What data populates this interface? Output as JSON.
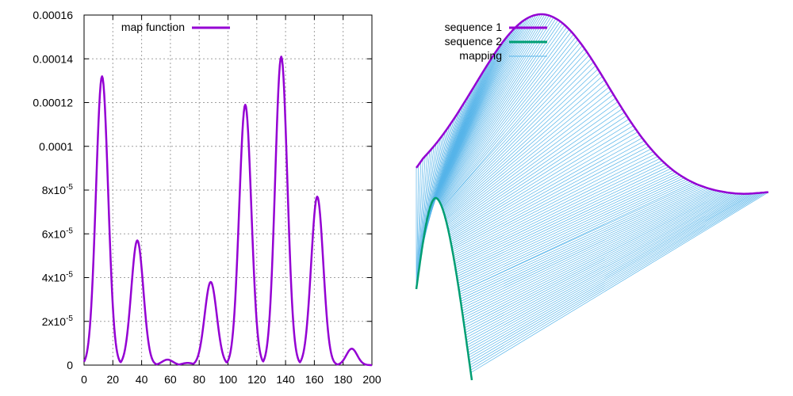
{
  "chart_data": [
    {
      "type": "line",
      "title": "",
      "xlabel": "",
      "ylabel": "",
      "xlim": [
        0,
        200
      ],
      "ylim": [
        0,
        0.00016
      ],
      "grid": true,
      "legend_position": "top-left",
      "x_ticks": [
        "0",
        "20",
        "40",
        "60",
        "80",
        "100",
        "120",
        "140",
        "160",
        "180",
        "200"
      ],
      "y_ticks": [
        "0",
        "2x10-5",
        "4x10-5",
        "6x10-5",
        "8x10-5",
        "0.0001",
        "0.00012",
        "0.00014",
        "0.00016"
      ],
      "y_tick_labels": [
        {
          "base": "0",
          "exp": ""
        },
        {
          "base": "2x10",
          "exp": "-5"
        },
        {
          "base": "4x10",
          "exp": "-5"
        },
        {
          "base": "6x10",
          "exp": "-5"
        },
        {
          "base": "8x10",
          "exp": "-5"
        },
        {
          "base": "0.0001",
          "exp": ""
        },
        {
          "base": "0.00012",
          "exp": ""
        },
        {
          "base": "0.00014",
          "exp": ""
        },
        {
          "base": "0.00016",
          "exp": ""
        }
      ],
      "series": [
        {
          "name": "map function",
          "color": "#9400d3",
          "peaks": [
            {
              "x": 12.5,
              "y": 0.000132
            },
            {
              "x": 37,
              "y": 5.7e-05
            },
            {
              "x": 58,
              "y": 2.5e-06
            },
            {
              "x": 72,
              "y": 1e-06
            },
            {
              "x": 88,
              "y": 3.8e-05
            },
            {
              "x": 112,
              "y": 0.000119
            },
            {
              "x": 137,
              "y": 0.000141
            },
            {
              "x": 162,
              "y": 7.7e-05
            },
            {
              "x": 186,
              "y": 7.5e-06
            }
          ]
        }
      ]
    },
    {
      "type": "line",
      "title": "",
      "axes_visible": false,
      "legend_position": "top-left",
      "series": [
        {
          "name": "sequence 1",
          "color": "#9400d3"
        },
        {
          "name": "sequence 2",
          "color": "#009e73"
        },
        {
          "name": "mapping",
          "color": "#56b4e9"
        }
      ]
    }
  ]
}
